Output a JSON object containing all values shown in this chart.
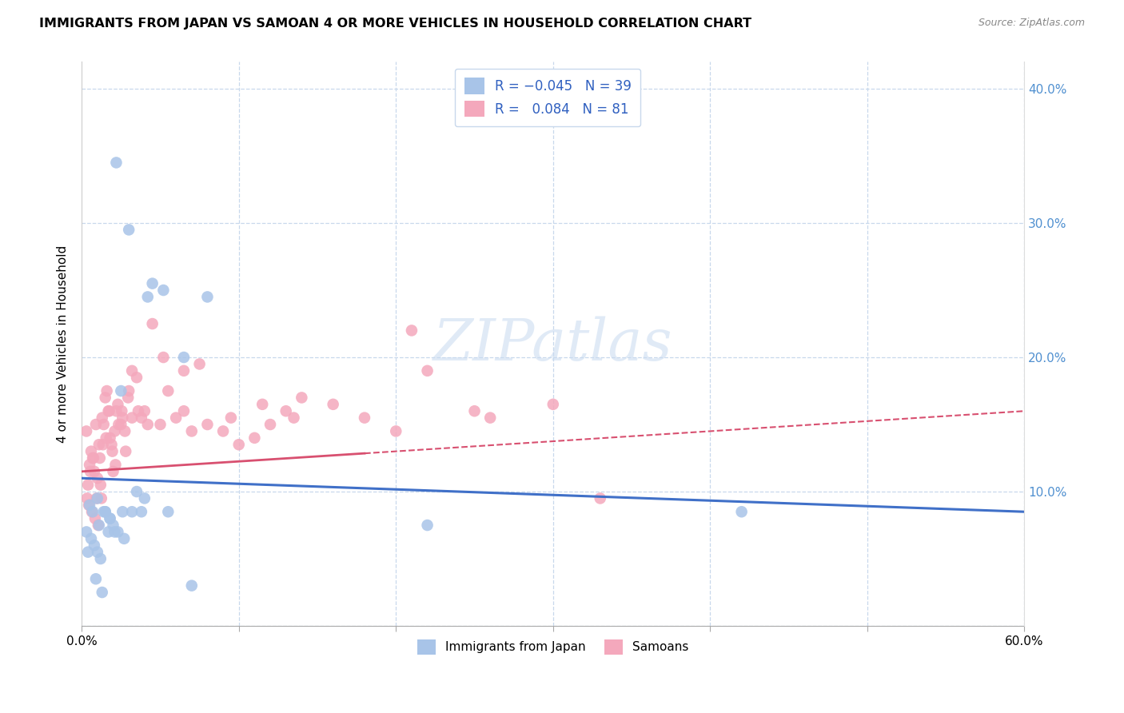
{
  "title": "IMMIGRANTS FROM JAPAN VS SAMOAN 4 OR MORE VEHICLES IN HOUSEHOLD CORRELATION CHART",
  "source": "Source: ZipAtlas.com",
  "ylabel": "4 or more Vehicles in Household",
  "xlim": [
    0.0,
    60.0
  ],
  "ylim": [
    0.0,
    42.0
  ],
  "japan_R": -0.045,
  "japan_N": 39,
  "samoan_R": 0.084,
  "samoan_N": 81,
  "japan_color": "#a8c4e8",
  "samoan_color": "#f4a8bc",
  "japan_line_color": "#4070c8",
  "samoan_line_color": "#d85070",
  "legend_label_japan": "Immigrants from Japan",
  "legend_label_samoan": "Samoans",
  "japan_line_x0": 11.0,
  "japan_line_x60": 8.5,
  "samoan_line_x0": 11.5,
  "samoan_line_x60": 16.0,
  "samoan_solid_end": 18.0,
  "japan_x": [
    1.0,
    2.2,
    3.0,
    4.5,
    5.2,
    6.5,
    8.0,
    0.5,
    1.5,
    1.8,
    2.5,
    3.5,
    4.0,
    4.2,
    0.3,
    0.6,
    0.8,
    1.0,
    1.2,
    1.5,
    1.8,
    2.0,
    2.3,
    2.7,
    3.2,
    0.4,
    0.7,
    1.1,
    1.4,
    1.7,
    2.1,
    2.6,
    3.8,
    5.5,
    7.0,
    22.0,
    42.0,
    0.9,
    1.3
  ],
  "japan_y": [
    9.5,
    34.5,
    29.5,
    25.5,
    25.0,
    20.0,
    24.5,
    9.0,
    8.5,
    8.0,
    17.5,
    10.0,
    9.5,
    24.5,
    7.0,
    6.5,
    6.0,
    5.5,
    5.0,
    8.5,
    8.0,
    7.5,
    7.0,
    6.5,
    8.5,
    5.5,
    8.5,
    7.5,
    8.5,
    7.0,
    7.0,
    8.5,
    8.5,
    8.5,
    3.0,
    7.5,
    8.5,
    3.5,
    2.5
  ],
  "samoan_x": [
    0.3,
    0.4,
    0.5,
    0.6,
    0.7,
    0.8,
    0.9,
    1.0,
    1.1,
    1.2,
    1.3,
    1.4,
    1.5,
    1.6,
    1.7,
    1.8,
    1.9,
    2.0,
    2.1,
    2.2,
    2.3,
    2.5,
    2.6,
    2.8,
    3.0,
    3.2,
    3.5,
    3.8,
    4.0,
    4.5,
    5.0,
    5.5,
    6.0,
    6.5,
    7.0,
    8.0,
    9.0,
    10.0,
    11.0,
    12.0,
    13.0,
    14.0,
    16.0,
    18.0,
    20.0,
    22.0,
    25.0,
    30.0,
    0.35,
    0.55,
    0.75,
    0.95,
    1.15,
    1.35,
    1.55,
    1.75,
    1.95,
    2.15,
    2.35,
    2.55,
    2.75,
    2.95,
    3.2,
    3.6,
    4.2,
    5.2,
    6.5,
    7.5,
    9.5,
    11.5,
    13.5,
    21.0,
    26.0,
    33.0,
    0.45,
    0.65,
    0.85,
    1.05,
    1.25
  ],
  "samoan_y": [
    14.5,
    10.5,
    12.0,
    13.0,
    12.5,
    11.5,
    15.0,
    11.0,
    13.5,
    10.5,
    15.5,
    15.0,
    17.0,
    17.5,
    16.0,
    14.0,
    13.5,
    11.5,
    14.5,
    16.0,
    16.5,
    15.0,
    15.5,
    13.0,
    17.5,
    19.0,
    18.5,
    15.5,
    16.0,
    22.5,
    15.0,
    17.5,
    15.5,
    16.0,
    14.5,
    15.0,
    14.5,
    13.5,
    14.0,
    15.0,
    16.0,
    17.0,
    16.5,
    15.5,
    14.5,
    19.0,
    16.0,
    16.5,
    9.5,
    11.5,
    12.5,
    9.5,
    12.5,
    13.5,
    14.0,
    16.0,
    13.0,
    12.0,
    15.0,
    16.0,
    14.5,
    17.0,
    15.5,
    16.0,
    15.0,
    20.0,
    19.0,
    19.5,
    15.5,
    16.5,
    15.5,
    22.0,
    15.5,
    9.5,
    9.0,
    8.5,
    8.0,
    7.5,
    9.5
  ]
}
